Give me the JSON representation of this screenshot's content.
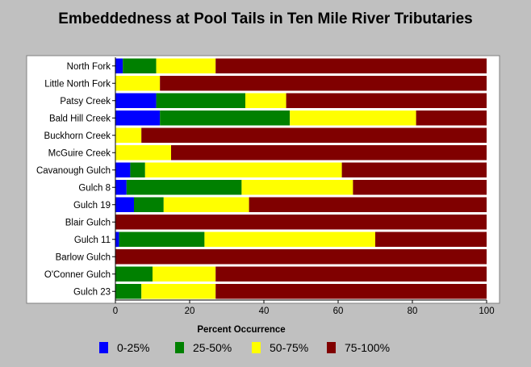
{
  "chart_data": {
    "type": "bar",
    "orientation": "horizontal",
    "stacked": true,
    "title": "Embeddedness at Pool Tails in Ten Mile River Tributaries",
    "xlabel": "Percent Occurrence",
    "ylabel": "",
    "xlim": [
      0,
      100
    ],
    "xticks": [
      "0",
      "20",
      "40",
      "60",
      "80",
      "100"
    ],
    "grid": false,
    "legend_position": "bottom",
    "categories": [
      "North Fork",
      "Little North Fork",
      "Patsy Creek",
      "Bald Hill Creek",
      "Buckhorn Creek",
      "McGuire Creek",
      "Cavanough Gulch",
      "Gulch 8",
      "Gulch 19",
      "Blair Gulch",
      "Gulch 11",
      "Barlow Gulch",
      "O'Conner Gulch",
      "Gulch 23"
    ],
    "series": [
      {
        "name": "0-25%",
        "color": "#0000ff",
        "values": [
          2,
          0,
          11,
          12,
          0,
          0,
          4,
          3,
          5,
          0,
          1,
          0,
          0,
          0
        ]
      },
      {
        "name": "25-50%",
        "color": "#008000",
        "values": [
          9,
          0,
          24,
          35,
          0,
          0,
          4,
          31,
          8,
          0,
          23,
          0,
          10,
          7
        ]
      },
      {
        "name": "50-75%",
        "color": "#ffff00",
        "values": [
          16,
          12,
          11,
          34,
          7,
          15,
          53,
          30,
          23,
          0,
          46,
          0,
          17,
          20
        ]
      },
      {
        "name": "75-100%",
        "color": "#800000",
        "values": [
          73,
          88,
          54,
          19,
          93,
          85,
          39,
          36,
          64,
          100,
          30,
          100,
          73,
          73
        ]
      }
    ]
  }
}
